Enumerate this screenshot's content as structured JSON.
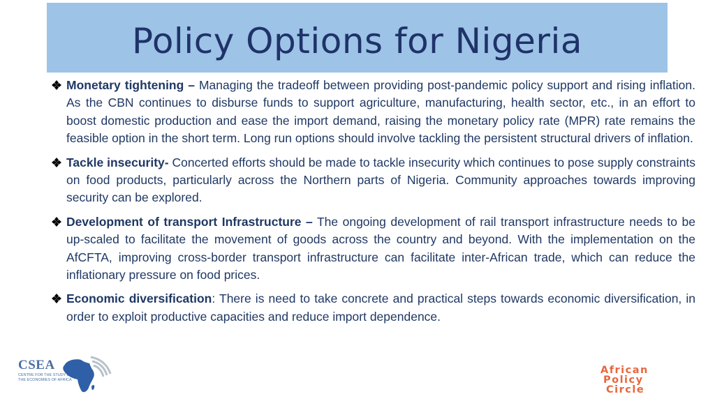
{
  "slide": {
    "title": "Policy Options for Nigeria"
  },
  "bullets": [
    {
      "term": "Monetary tightening –",
      "text": " Managing the tradeoff between providing post-pandemic policy support and rising inflation. As the CBN continues to disburse funds to support agriculture, manufacturing, health sector, etc., in an effort to boost domestic production and ease the import demand, raising the monetary policy rate (MPR) rate remains the feasible option in the short term. Long run options should involve tackling the persistent structural drivers of inflation."
    },
    {
      "term": "Tackle insecurity-",
      "text": " Concerted efforts should be made to tackle insecurity which continues to pose supply constraints on food products, particularly across the Northern parts of Nigeria. Community approaches towards improving security can be explored."
    },
    {
      "term": "Development of transport Infrastructure –",
      "text": " The ongoing development of rail transport infrastructure needs to be up-scaled to facilitate the movement of goods across the country and beyond. With the implementation on the AfCFTA, improving cross-border transport infrastructure can facilitate inter-African trade, which can reduce the inflationary pressure on food prices."
    },
    {
      "term": "Economic diversification",
      "text": ": There is need to take concrete and practical steps towards economic diversification, in order to exploit productive capacities and reduce import dependence."
    }
  ],
  "logos": {
    "csea": {
      "acronym": "CSEA",
      "subtitle_line1": "Centre for the Study of",
      "subtitle_line2": "the Economies of Africa"
    },
    "apc": {
      "line1": "African",
      "line2": "Policy",
      "line3": "Circle"
    }
  },
  "colors": {
    "title_band": "#9dc3e6",
    "title_text": "#1f3269",
    "body_text": "#1f3864",
    "apc_orange": "#e8663d",
    "csea_blue": "#4a6fa5"
  }
}
